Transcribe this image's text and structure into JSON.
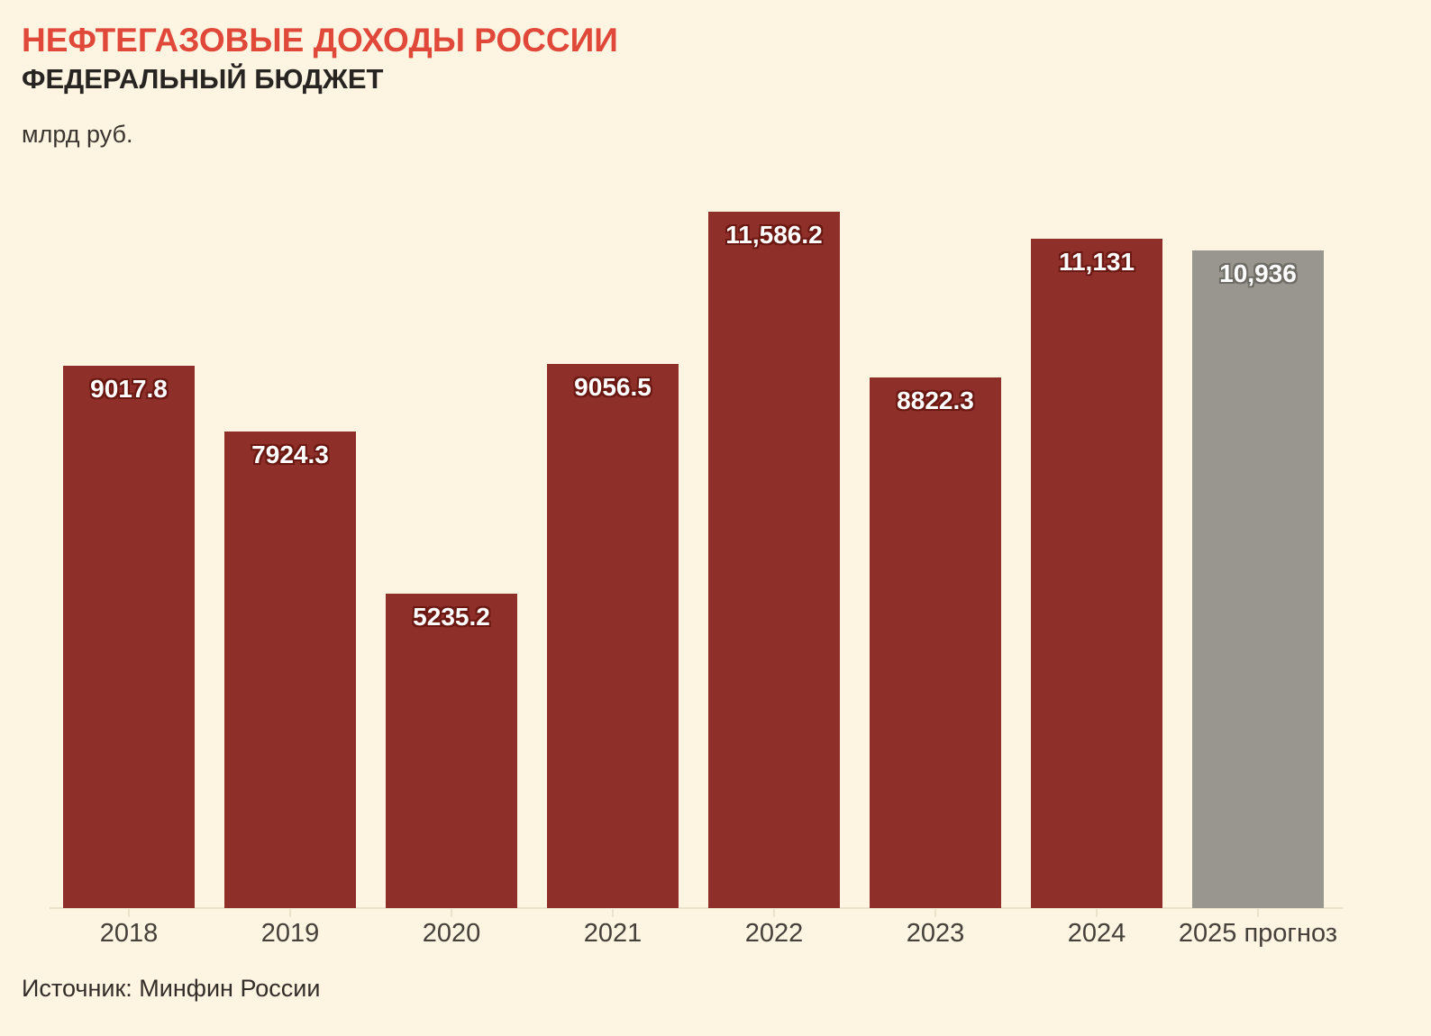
{
  "header": {
    "title": "НЕФТЕГАЗОВЫЕ ДОХОДЫ РОССИИ",
    "subtitle": "ФЕДЕРАЛЬНЫЙ БЮДЖЕТ",
    "unit": "млрд руб."
  },
  "source": "Источник: Минфин России",
  "colors": {
    "background": "#fdf4e1",
    "title_red": "#e0483a",
    "text_dark": "#272422",
    "bar_red": "#8e2f2a",
    "bar_gray": "#98968f",
    "label_outline_red": "#6b1812",
    "label_outline_gray": "#6f6d66",
    "axis_line": "#ece3cc"
  },
  "chart_data": {
    "type": "bar",
    "title": "НЕФТЕГАЗОВЫЕ ДОХОДЫ РОССИИ — ФЕДЕРАЛЬНЫЙ БЮДЖЕТ",
    "xlabel": "",
    "ylabel": "млрд руб.",
    "categories": [
      "2018",
      "2019",
      "2020",
      "2021",
      "2022",
      "2023",
      "2024",
      "2025 прогноз"
    ],
    "values": [
      9017.8,
      7924.3,
      5235.2,
      9056.5,
      11586.2,
      8822.3,
      11131,
      10936
    ],
    "value_labels": [
      "9017.8",
      "7924.3",
      "5235.2",
      "9056.5",
      "11,586.2",
      "8822.3",
      "11,131",
      "10,936"
    ],
    "bar_kinds": [
      "actual",
      "actual",
      "actual",
      "actual",
      "actual",
      "actual",
      "actual",
      "forecast"
    ],
    "ylim": [
      0,
      11586.2
    ],
    "grid": false,
    "legend": "none",
    "bar_value_labels_position": "inside-top"
  }
}
